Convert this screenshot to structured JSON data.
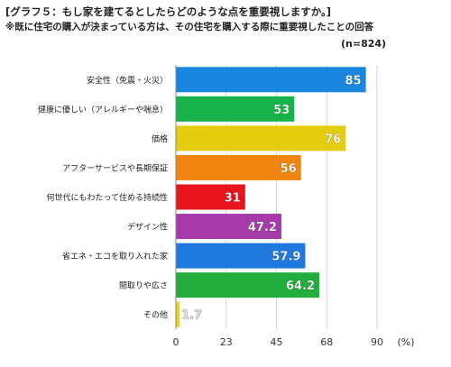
{
  "header": {
    "title": "[グラフ５：もし家を建てるとしたらどのような点を重要視しますか。]",
    "subtitle": "※既に住宅の購入が決まっている方は、その住宅を購入する際に重要視したことの回答",
    "sample": "(n=824)"
  },
  "chart_data": {
    "type": "bar",
    "orientation": "horizontal",
    "categories": [
      "安全性（免震・火災）",
      "健康に優しい（アレルギーや喘息）",
      "価格",
      "アフターサービスや長期保証",
      "何世代にもわたって住める持続性",
      "デザイン性",
      "省エネ・エコを取り入れた家",
      "間取りや広さ",
      "その他"
    ],
    "values": [
      85,
      53,
      76,
      56,
      31,
      47.2,
      57.9,
      64.2,
      1.7
    ],
    "value_labels": [
      "85",
      "53",
      "76",
      "56",
      "31",
      "47.2",
      "57.9",
      "64.2",
      "1.7"
    ],
    "colors": [
      "#1a86e0",
      "#16b24a",
      "#e6cc0e",
      "#f28410",
      "#e8141c",
      "#a53aa8",
      "#1e78de",
      "#22ad3c",
      "#e8d514"
    ],
    "xticks": [
      "0",
      "23",
      "45",
      "68",
      "90"
    ],
    "tick_values": [
      0,
      22.5,
      45,
      67.5,
      90
    ],
    "xunit": "(%)",
    "xlim": [
      0,
      90
    ],
    "grid": true
  }
}
